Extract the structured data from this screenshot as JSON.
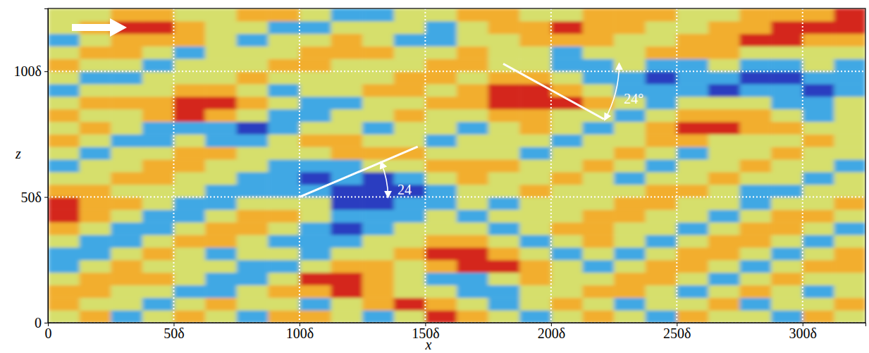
{
  "chart_data": {
    "type": "heatmap",
    "x_label": "x",
    "y_label": "z",
    "xlim": [
      0,
      325
    ],
    "ylim": [
      0,
      125
    ],
    "xticks": [
      0,
      {
        "value": 50,
        "label": "50δ"
      },
      {
        "value": 100,
        "label": "100δ"
      },
      {
        "value": 150,
        "label": "150δ"
      },
      {
        "value": 200,
        "label": "200δ"
      },
      {
        "value": 250,
        "label": "250δ"
      },
      {
        "value": 300,
        "label": "300δ"
      }
    ],
    "yticks": [
      0,
      {
        "value": 50,
        "label": "50δ"
      },
      {
        "value": 100,
        "label": "100δ"
      }
    ],
    "grid": true,
    "value_range": [
      -2,
      2
    ],
    "x_bins": [
      0,
      12.5,
      25,
      37.5,
      50,
      62.5,
      75,
      87.5,
      100,
      112.5,
      125,
      137.5,
      150,
      162.5,
      175,
      187.5,
      200,
      212.5,
      225,
      237.5,
      250,
      262.5,
      275,
      287.5,
      300,
      312.5,
      325
    ],
    "z_bins": [
      0,
      5,
      10,
      15,
      20,
      25,
      30,
      35,
      40,
      45,
      50,
      55,
      60,
      65,
      70,
      75,
      80,
      85,
      90,
      95,
      100,
      105,
      110,
      115,
      120,
      125
    ],
    "cells": [
      [
        0,
        1,
        -1,
        0,
        1,
        0,
        -1,
        1,
        1,
        0,
        -1,
        0,
        2,
        1,
        0,
        -1,
        0,
        1,
        0,
        -1,
        1,
        0,
        0,
        -1,
        1,
        0
      ],
      [
        1,
        0,
        0,
        -1,
        0,
        1,
        0,
        0,
        -1,
        0,
        1,
        2,
        1,
        0,
        -1,
        0,
        1,
        0,
        -1,
        0,
        0,
        1,
        -1,
        0,
        0,
        1
      ],
      [
        1,
        1,
        0,
        0,
        -1,
        -1,
        0,
        1,
        1,
        2,
        1,
        0,
        0,
        -1,
        -1,
        0,
        0,
        1,
        1,
        0,
        -1,
        0,
        1,
        0,
        -1,
        0
      ],
      [
        0,
        1,
        1,
        1,
        0,
        -1,
        -1,
        0,
        2,
        2,
        1,
        0,
        -1,
        -1,
        0,
        1,
        0,
        0,
        1,
        1,
        0,
        -1,
        0,
        1,
        0,
        0
      ],
      [
        -1,
        0,
        1,
        0,
        0,
        0,
        -1,
        -1,
        0,
        1,
        1,
        0,
        1,
        2,
        2,
        1,
        0,
        -1,
        0,
        1,
        1,
        0,
        -1,
        0,
        1,
        1
      ],
      [
        -1,
        -1,
        0,
        1,
        0,
        -1,
        0,
        0,
        -1,
        0,
        0,
        1,
        2,
        2,
        1,
        0,
        -1,
        0,
        -1,
        0,
        1,
        1,
        0,
        -1,
        0,
        1
      ],
      [
        0,
        -1,
        -1,
        0,
        1,
        1,
        0,
        -1,
        -1,
        -1,
        0,
        0,
        1,
        1,
        0,
        -1,
        0,
        1,
        0,
        -1,
        0,
        1,
        1,
        0,
        -1,
        0
      ],
      [
        1,
        0,
        -1,
        -1,
        0,
        1,
        1,
        0,
        -1,
        -2,
        -1,
        0,
        0,
        0,
        -1,
        0,
        1,
        1,
        0,
        0,
        -1,
        0,
        1,
        1,
        0,
        -1
      ],
      [
        2,
        1,
        0,
        -1,
        -1,
        0,
        1,
        1,
        0,
        -1,
        -1,
        -1,
        0,
        -1,
        0,
        0,
        0,
        1,
        1,
        0,
        0,
        -1,
        0,
        1,
        1,
        0
      ],
      [
        2,
        1,
        1,
        0,
        -1,
        -1,
        0,
        0,
        0,
        -2,
        -2,
        -1,
        -1,
        0,
        -1,
        0,
        0,
        0,
        1,
        1,
        0,
        0,
        -1,
        0,
        0,
        1
      ],
      [
        1,
        1,
        0,
        0,
        0,
        -1,
        -1,
        -1,
        -1,
        -2,
        -2,
        -2,
        -1,
        0,
        0,
        1,
        0,
        0,
        0,
        1,
        1,
        0,
        -1,
        -1,
        0,
        0
      ],
      [
        0,
        0,
        1,
        1,
        0,
        0,
        -1,
        -1,
        -2,
        -1,
        -2,
        -1,
        0,
        1,
        0,
        0,
        1,
        0,
        -1,
        0,
        0,
        1,
        0,
        0,
        -1,
        0
      ],
      [
        -1,
        0,
        0,
        1,
        1,
        0,
        0,
        -1,
        -1,
        -1,
        0,
        0,
        1,
        1,
        1,
        0,
        0,
        1,
        0,
        -1,
        0,
        0,
        1,
        0,
        0,
        -1
      ],
      [
        0,
        -1,
        0,
        0,
        1,
        1,
        0,
        0,
        0,
        1,
        1,
        1,
        0,
        0,
        0,
        -1,
        0,
        0,
        1,
        0,
        -1,
        0,
        0,
        1,
        0,
        0
      ],
      [
        1,
        0,
        -1,
        -1,
        0,
        -1,
        -1,
        0,
        1,
        1,
        0,
        0,
        -1,
        0,
        0,
        0,
        -1,
        0,
        0,
        1,
        1,
        0,
        0,
        0,
        1,
        0
      ],
      [
        0,
        1,
        0,
        -1,
        -1,
        -1,
        -2,
        -1,
        0,
        0,
        -1,
        0,
        0,
        -1,
        0,
        1,
        0,
        -1,
        0,
        1,
        2,
        2,
        1,
        1,
        0,
        0
      ],
      [
        1,
        0,
        0,
        1,
        2,
        1,
        0,
        -1,
        -1,
        0,
        0,
        1,
        0,
        0,
        1,
        1,
        0,
        0,
        -1,
        0,
        1,
        1,
        1,
        0,
        -1,
        0
      ],
      [
        0,
        1,
        1,
        1,
        2,
        2,
        1,
        0,
        -1,
        -1,
        0,
        0,
        1,
        1,
        2,
        2,
        2,
        1,
        0,
        -1,
        0,
        0,
        0,
        -1,
        -1,
        0
      ],
      [
        -1,
        0,
        0,
        0,
        1,
        1,
        0,
        -1,
        0,
        0,
        1,
        1,
        0,
        1,
        2,
        2,
        1,
        0,
        -1,
        -1,
        -1,
        -2,
        -1,
        -1,
        -2,
        -1
      ],
      [
        0,
        -1,
        -1,
        0,
        0,
        0,
        1,
        0,
        0,
        0,
        0,
        1,
        1,
        0,
        1,
        1,
        0,
        -1,
        -1,
        -2,
        -1,
        -1,
        -2,
        -2,
        -1,
        -1
      ],
      [
        1,
        0,
        0,
        -1,
        0,
        0,
        0,
        1,
        1,
        0,
        0,
        0,
        1,
        1,
        0,
        0,
        -1,
        -1,
        0,
        -1,
        -1,
        0,
        -1,
        -1,
        0,
        -1
      ],
      [
        0,
        1,
        1,
        0,
        -1,
        0,
        0,
        0,
        1,
        1,
        1,
        0,
        0,
        1,
        0,
        0,
        -1,
        0,
        0,
        1,
        1,
        1,
        0,
        0,
        0,
        0
      ],
      [
        -1,
        0,
        1,
        1,
        1,
        0,
        -1,
        0,
        0,
        1,
        0,
        -1,
        -1,
        0,
        0,
        1,
        1,
        1,
        0,
        0,
        1,
        1,
        2,
        2,
        1,
        1
      ],
      [
        0,
        1,
        2,
        2,
        1,
        0,
        0,
        -1,
        -1,
        0,
        0,
        0,
        -1,
        0,
        1,
        1,
        2,
        1,
        1,
        0,
        0,
        1,
        1,
        2,
        2,
        2
      ],
      [
        0,
        0,
        1,
        1,
        0,
        0,
        1,
        1,
        0,
        -1,
        -1,
        0,
        0,
        1,
        1,
        0,
        0,
        1,
        1,
        1,
        0,
        0,
        1,
        1,
        1,
        2
      ]
    ],
    "annotations": [
      {
        "text": "24",
        "line": [
          [
            100,
            50
          ],
          [
            147,
            70
          ]
        ],
        "text_pos": [
          139,
          53
        ]
      },
      {
        "text": "24°",
        "line": [
          [
            181,
            103
          ],
          [
            221,
            81
          ]
        ],
        "text_pos": [
          229,
          89
        ]
      }
    ]
  }
}
